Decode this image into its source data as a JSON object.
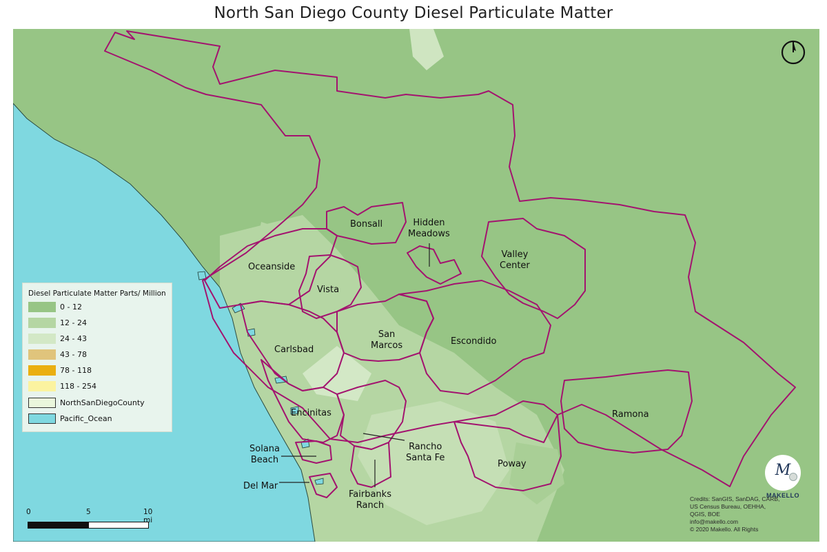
{
  "title": "North San Diego County Diesel Particulate Matter",
  "colors": {
    "land_base": "#97c585",
    "class_0_12": "#97c585",
    "class_12_24": "#b5d6a3",
    "class_24_43": "#d3e8c6",
    "class_43_78": "#e0c47c",
    "class_78_118": "#eaaf10",
    "class_118_254": "#fbf3a0",
    "county": "#eaf7dc",
    "ocean": "#7fd8e0",
    "boundary": "#a3136f"
  },
  "places": [
    {
      "id": "bonsall",
      "text": "Bonsall"
    },
    {
      "id": "hidden-meadows",
      "text": "Hidden\nMeadows"
    },
    {
      "id": "valley-center",
      "text": "Valley\nCenter"
    },
    {
      "id": "oceanside",
      "text": "Oceanside"
    },
    {
      "id": "vista",
      "text": "Vista"
    },
    {
      "id": "san-marcos",
      "text": "San\nMarcos"
    },
    {
      "id": "escondido",
      "text": "Escondido"
    },
    {
      "id": "carlsbad",
      "text": "Carlsbad"
    },
    {
      "id": "encinitas",
      "text": "Encinitas"
    },
    {
      "id": "ramona",
      "text": "Ramona"
    },
    {
      "id": "rancho-santa-fe",
      "text": "Rancho\nSanta Fe"
    },
    {
      "id": "solana-beach",
      "text": "Solana\nBeach"
    },
    {
      "id": "poway",
      "text": "Poway"
    },
    {
      "id": "del-mar",
      "text": "Del Mar"
    },
    {
      "id": "fairbanks-ranch",
      "text": "Fairbanks\nRanch"
    }
  ],
  "legend": {
    "title": "Diesel Particulate Matter Parts/ Million",
    "items": [
      {
        "label": "0 - 12",
        "color": "#97c585"
      },
      {
        "label": "12 - 24",
        "color": "#b5d6a3"
      },
      {
        "label": "24 - 43",
        "color": "#d3e8c6"
      },
      {
        "label": "43 - 78",
        "color": "#e0c47c"
      },
      {
        "label": "78 - 118",
        "color": "#eaaf10"
      },
      {
        "label": "118 - 254",
        "color": "#fbf3a0"
      },
      {
        "label": "NorthSanDiegoCounty",
        "color": "#eaf7dc",
        "outlined": true
      },
      {
        "label": "Pacific_Ocean",
        "color": "#7fd8e0",
        "outlined": true
      }
    ]
  },
  "scale": {
    "ticks": [
      "0",
      "5",
      "10 mi"
    ]
  },
  "logo": {
    "letter": "M",
    "name": "MAKELLO"
  },
  "credits": [
    "Credits: SanGIS, SanDAG, CARB,",
    "US Census Bureau,  OEHHA,",
    "QGIS, BOE",
    "info@makello.com",
    "© 2020 Makello. All Rights"
  ]
}
